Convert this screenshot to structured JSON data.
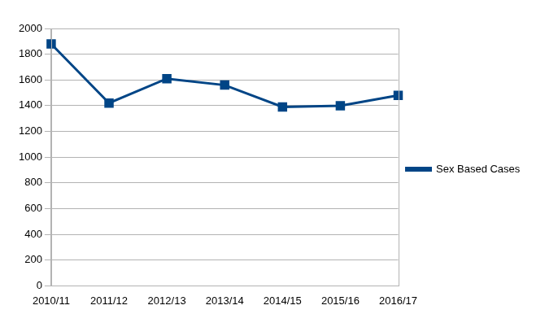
{
  "chart_data": {
    "type": "line",
    "categories": [
      "2010/11",
      "2011/12",
      "2012/13",
      "2013/14",
      "2014/15",
      "2015/16",
      "2016/17"
    ],
    "series": [
      {
        "name": "Sex Based Cases",
        "color": "#004586",
        "marker": "square",
        "line_style": "solid",
        "values": [
          1880,
          1420,
          1610,
          1560,
          1390,
          1400,
          1480
        ]
      }
    ],
    "ylim": [
      0,
      2000
    ],
    "yticks": [
      0,
      200,
      400,
      600,
      800,
      1000,
      1200,
      1400,
      1600,
      1800,
      2000
    ],
    "grid": true,
    "legend": "right"
  }
}
